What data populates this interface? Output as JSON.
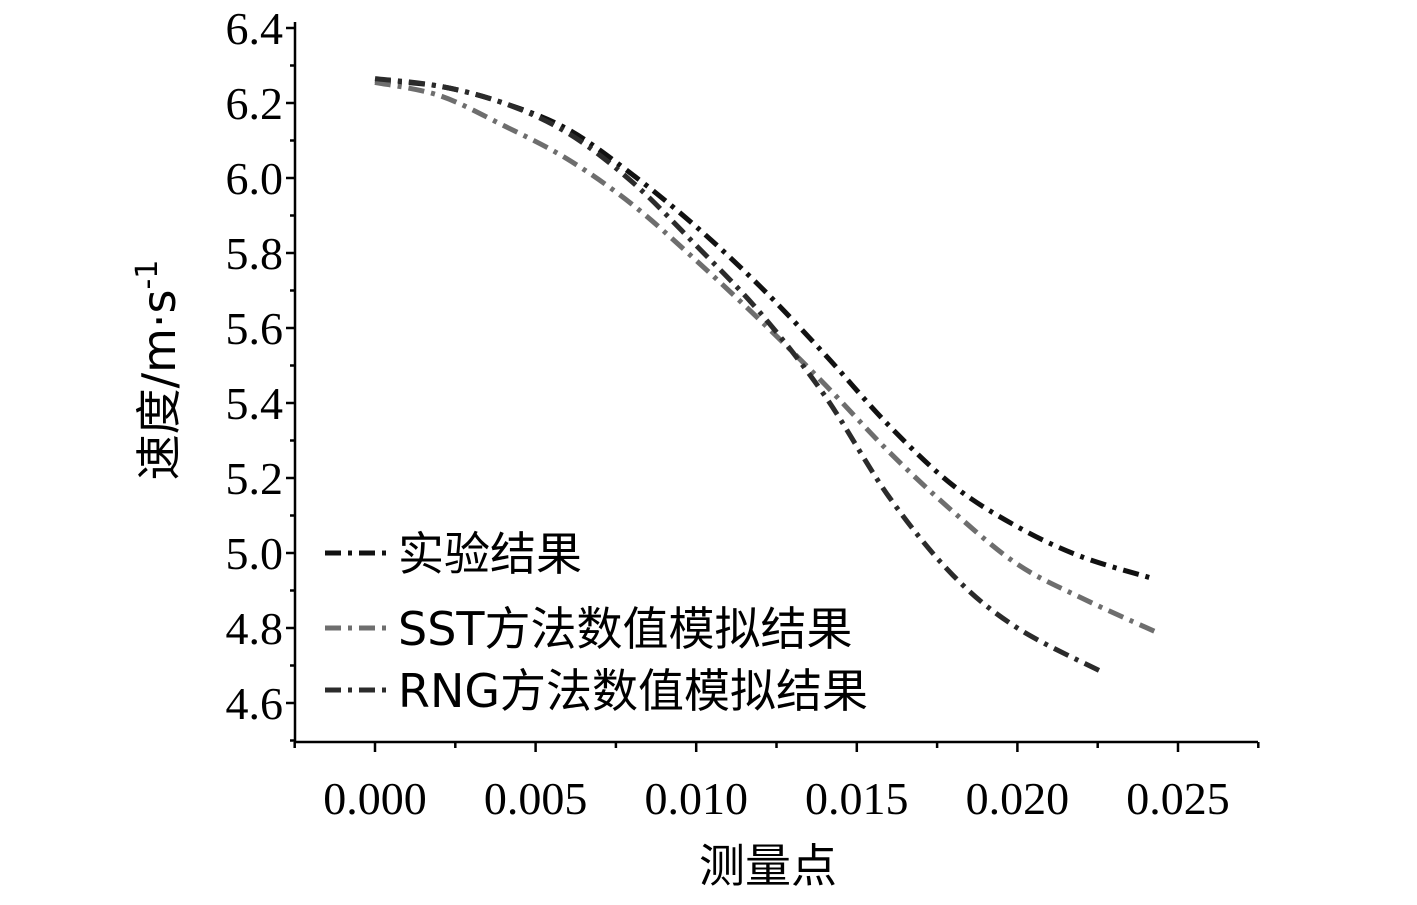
{
  "chart_data": {
    "type": "line",
    "xlabel": "测量点",
    "ylabel": "速度/m·s",
    "ylabel_sup": "-1",
    "xlim": [
      -0.0025,
      0.0275
    ],
    "ylim": [
      4.5,
      6.4
    ],
    "xticks": [
      "0.000",
      "0.005",
      "0.010",
      "0.015",
      "0.020",
      "0.025"
    ],
    "xtick_values": [
      0.0,
      0.005,
      0.01,
      0.015,
      0.02,
      0.025
    ],
    "yticks": [
      "4.6",
      "4.8",
      "5.0",
      "5.2",
      "5.4",
      "5.6",
      "5.8",
      "6.0",
      "6.2",
      "6.4"
    ],
    "ytick_values": [
      4.6,
      4.8,
      5.0,
      5.2,
      5.4,
      5.6,
      5.8,
      6.0,
      6.2,
      6.4
    ],
    "legend_position": "bottom-left",
    "series": [
      {
        "name": "实验结果",
        "color": "#111111",
        "dash": "dashdot",
        "x": [
          0.0,
          0.002,
          0.004,
          0.006,
          0.008,
          0.01,
          0.012,
          0.014,
          0.016,
          0.018,
          0.02,
          0.022,
          0.0243
        ],
        "y": [
          6.26,
          6.245,
          6.2,
          6.13,
          6.01,
          5.87,
          5.71,
          5.53,
          5.34,
          5.18,
          5.07,
          4.99,
          4.93
        ]
      },
      {
        "name": "SST方法数值模拟结果",
        "color": "#6e6e6e",
        "dash": "dashdot",
        "x": [
          0.0,
          0.002,
          0.004,
          0.006,
          0.008,
          0.01,
          0.012,
          0.014,
          0.016,
          0.018,
          0.02,
          0.022,
          0.0243
        ],
        "y": [
          6.255,
          6.22,
          6.14,
          6.05,
          5.93,
          5.78,
          5.62,
          5.45,
          5.27,
          5.11,
          4.97,
          4.88,
          4.79
        ]
      },
      {
        "name": "RNG方法数值模拟结果",
        "color": "#2b2b2b",
        "dash": "dashdot",
        "x": [
          0.0,
          0.002,
          0.004,
          0.006,
          0.008,
          0.01,
          0.012,
          0.014,
          0.016,
          0.018,
          0.02,
          0.0227
        ],
        "y": [
          6.265,
          6.245,
          6.2,
          6.12,
          5.99,
          5.82,
          5.64,
          5.42,
          5.15,
          4.94,
          4.8,
          4.68
        ]
      }
    ]
  }
}
